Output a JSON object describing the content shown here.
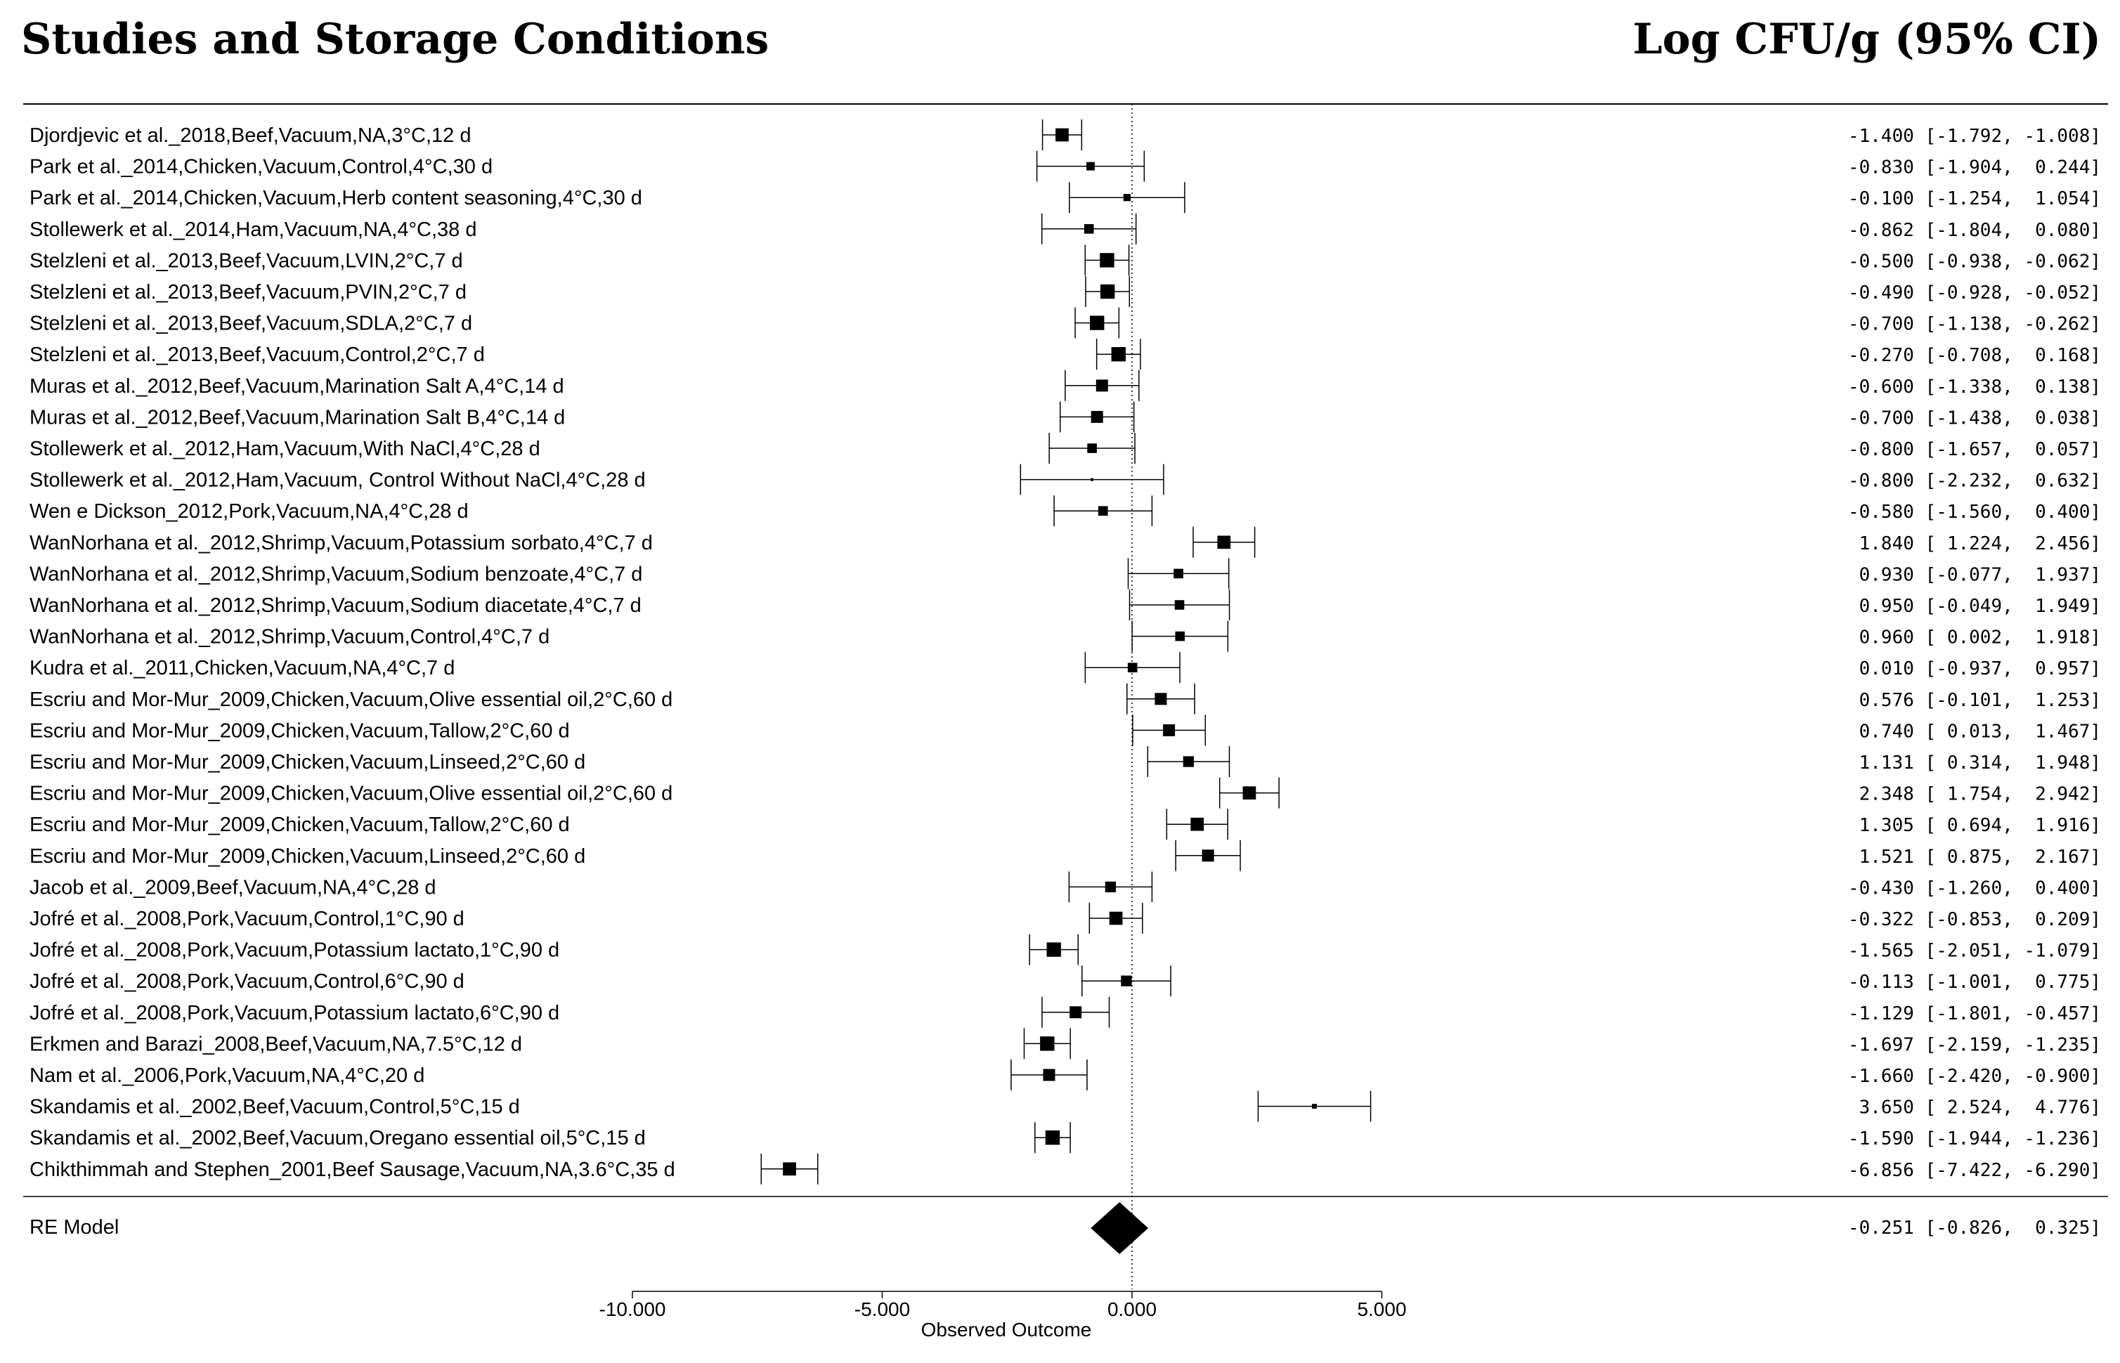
{
  "chart_data": {
    "type": "forest",
    "title_left": "Studies and Storage Conditions",
    "title_right": "Log CFU/g (95% CI)",
    "xlabel": "Observed Outcome",
    "xlim": [
      -10,
      5
    ],
    "x_ticks": [
      -10,
      -5,
      0,
      5
    ],
    "x_tick_labels": [
      "-10.000",
      "-5.000",
      "0.000",
      "5.000"
    ],
    "reference_line": 0,
    "studies": [
      {
        "label": "Djordjevic et al._2018,Beef,Vacuum,NA,3°C,12 d",
        "est": -1.4,
        "lo": -1.792,
        "hi": -1.008,
        "ci_text": "-1.400 [-1.792, -1.008]",
        "w": 2.9
      },
      {
        "label": "Park et al._2014,Chicken,Vacuum,Control,4°C,30 d",
        "est": -0.83,
        "lo": -1.904,
        "hi": 0.244,
        "ci_text": "-0.830 [-1.904,  0.244]",
        "w": 2.5
      },
      {
        "label": "Park et al._2014,Chicken,Vacuum,Herb content seasoning,4°C,30 d",
        "est": -0.1,
        "lo": -1.254,
        "hi": 1.054,
        "ci_text": "-0.100 [-1.254,  1.054]",
        "w": 2.4
      },
      {
        "label": "Stollewerk et al._2014,Ham,Vacuum,NA,4°C,38 d",
        "est": -0.862,
        "lo": -1.804,
        "hi": 0.08,
        "ci_text": "-0.862 [-1.804,  0.080]",
        "w": 2.6
      },
      {
        "label": "Stelzleni et al._2013,Beef,Vacuum,LVIN,2°C,7 d",
        "est": -0.5,
        "lo": -0.938,
        "hi": -0.062,
        "ci_text": "-0.500 [-0.938, -0.062]",
        "w": 3.0
      },
      {
        "label": "Stelzleni et al._2013,Beef,Vacuum,PVIN,2°C,7 d",
        "est": -0.49,
        "lo": -0.928,
        "hi": -0.052,
        "ci_text": "-0.490 [-0.928, -0.052]",
        "w": 3.0
      },
      {
        "label": "Stelzleni et al._2013,Beef,Vacuum,SDLA,2°C,7 d",
        "est": -0.7,
        "lo": -1.138,
        "hi": -0.262,
        "ci_text": "-0.700 [-1.138, -0.262]",
        "w": 3.0
      },
      {
        "label": "Stelzleni et al._2013,Beef,Vacuum,Control,2°C,7 d",
        "est": -0.27,
        "lo": -0.708,
        "hi": 0.168,
        "ci_text": "-0.270 [-0.708,  0.168]",
        "w": 3.0
      },
      {
        "label": "Muras et al._2012,Beef,Vacuum,Marination Salt A,4°C,14 d",
        "est": -0.6,
        "lo": -1.338,
        "hi": 0.138,
        "ci_text": "-0.600 [-1.338,  0.138]",
        "w": 2.8
      },
      {
        "label": "Muras et al._2012,Beef,Vacuum,Marination Salt B,4°C,14 d",
        "est": -0.7,
        "lo": -1.438,
        "hi": 0.038,
        "ci_text": "-0.700 [-1.438,  0.038]",
        "w": 2.8
      },
      {
        "label": "Stollewerk et al._2012,Ham,Vacuum,With NaCl,4°C,28 d",
        "est": -0.8,
        "lo": -1.657,
        "hi": 0.057,
        "ci_text": "-0.800 [-1.657,  0.057]",
        "w": 2.6
      },
      {
        "label": "Stollewerk et al._2012,Ham,Vacuum, Control Without NaCl,4°C,28 d",
        "est": -0.8,
        "lo": -2.232,
        "hi": 0.632,
        "ci_text": "-0.800 [-2.232,  0.632]",
        "w": 2.0
      },
      {
        "label": "Wen e Dickson_2012,Pork,Vacuum,NA,4°C,28 d",
        "est": -0.58,
        "lo": -1.56,
        "hi": 0.4,
        "ci_text": "-0.580 [-1.560,  0.400]",
        "w": 2.6
      },
      {
        "label": "WanNorhana et al._2012,Shrimp,Vacuum,Potassium sorbato,4°C,7 d",
        "est": 1.84,
        "lo": 1.224,
        "hi": 2.456,
        "ci_text": " 1.840 [ 1.224,  2.456]",
        "w": 2.9
      },
      {
        "label": "WanNorhana et al._2012,Shrimp,Vacuum,Sodium benzoate,4°C,7 d",
        "est": 0.93,
        "lo": -0.077,
        "hi": 1.937,
        "ci_text": " 0.930 [-0.077,  1.937]",
        "w": 2.6
      },
      {
        "label": "WanNorhana et al._2012,Shrimp,Vacuum,Sodium diacetate,4°C,7 d",
        "est": 0.95,
        "lo": -0.049,
        "hi": 1.949,
        "ci_text": " 0.950 [-0.049,  1.949]",
        "w": 2.6
      },
      {
        "label": "WanNorhana et al._2012,Shrimp,Vacuum,Control,4°C,7 d",
        "est": 0.96,
        "lo": 0.002,
        "hi": 1.918,
        "ci_text": " 0.960 [ 0.002,  1.918]",
        "w": 2.6
      },
      {
        "label": "Kudra et al._2011,Chicken,Vacuum,NA,4°C,7 d",
        "est": 0.01,
        "lo": -0.937,
        "hi": 0.957,
        "ci_text": " 0.010 [-0.937,  0.957]",
        "w": 2.6
      },
      {
        "label": "Escriu and Mor-Mur_2009,Chicken,Vacuum,Olive essential oil,2°C,60 d",
        "est": 0.576,
        "lo": -0.101,
        "hi": 1.253,
        "ci_text": " 0.576 [-0.101,  1.253]",
        "w": 2.8
      },
      {
        "label": "Escriu and Mor-Mur_2009,Chicken,Vacuum,Tallow,2°C,60 d",
        "est": 0.74,
        "lo": 0.013,
        "hi": 1.467,
        "ci_text": " 0.740 [ 0.013,  1.467]",
        "w": 2.8
      },
      {
        "label": "Escriu and Mor-Mur_2009,Chicken,Vacuum,Linseed,2°C,60 d",
        "est": 1.131,
        "lo": 0.314,
        "hi": 1.948,
        "ci_text": " 1.131 [ 0.314,  1.948]",
        "w": 2.7
      },
      {
        "label": "Escriu and Mor-Mur_2009,Chicken,Vacuum,Olive essential oil,2°C,60 d",
        "est": 2.348,
        "lo": 1.754,
        "hi": 2.942,
        "ci_text": " 2.348 [ 1.754,  2.942]",
        "w": 2.9
      },
      {
        "label": "Escriu and Mor-Mur_2009,Chicken,Vacuum,Tallow,2°C,60 d",
        "est": 1.305,
        "lo": 0.694,
        "hi": 1.916,
        "ci_text": " 1.305 [ 0.694,  1.916]",
        "w": 2.9
      },
      {
        "label": "Escriu and Mor-Mur_2009,Chicken,Vacuum,Linseed,2°C,60 d",
        "est": 1.521,
        "lo": 0.875,
        "hi": 2.167,
        "ci_text": " 1.521 [ 0.875,  2.167]",
        "w": 2.8
      },
      {
        "label": "Jacob et al._2009,Beef,Vacuum,NA,4°C,28 d",
        "est": -0.43,
        "lo": -1.26,
        "hi": 0.4,
        "ci_text": "-0.430 [-1.260,  0.400]",
        "w": 2.7
      },
      {
        "label": "Jofré et al._2008,Pork,Vacuum,Control,1°C,90 d",
        "est": -0.322,
        "lo": -0.853,
        "hi": 0.209,
        "ci_text": "-0.322 [-0.853,  0.209]",
        "w": 2.9
      },
      {
        "label": "Jofré et al._2008,Pork,Vacuum,Potassium lactato,1°C,90 d",
        "est": -1.565,
        "lo": -2.051,
        "hi": -1.079,
        "ci_text": "-1.565 [-2.051, -1.079]",
        "w": 3.0
      },
      {
        "label": "Jofré et al._2008,Pork,Vacuum,Control,6°C,90 d",
        "est": -0.113,
        "lo": -1.001,
        "hi": 0.775,
        "ci_text": "-0.113 [-1.001,  0.775]",
        "w": 2.7
      },
      {
        "label": "Jofré et al._2008,Pork,Vacuum,Potassium lactato,6°C,90 d",
        "est": -1.129,
        "lo": -1.801,
        "hi": -0.457,
        "ci_text": "-1.129 [-1.801, -0.457]",
        "w": 2.8
      },
      {
        "label": "Erkmen and Barazi_2008,Beef,Vacuum,NA,7.5°C,12 d",
        "est": -1.697,
        "lo": -2.159,
        "hi": -1.235,
        "ci_text": "-1.697 [-2.159, -1.235]",
        "w": 3.0
      },
      {
        "label": "Nam et al._2006,Pork,Vacuum,NA,4°C,20 d",
        "est": -1.66,
        "lo": -2.42,
        "hi": -0.9,
        "ci_text": "-1.660 [-2.420, -0.900]",
        "w": 2.8
      },
      {
        "label": "Skandamis et al._2002,Beef,Vacuum,Control,5°C,15 d",
        "est": 3.65,
        "lo": 2.524,
        "hi": 4.776,
        "ci_text": " 3.650 [ 2.524,  4.776]",
        "w": 2.2
      },
      {
        "label": "Skandamis et al._2002,Beef,Vacuum,Oregano essential oil,5°C,15 d",
        "est": -1.59,
        "lo": -1.944,
        "hi": -1.236,
        "ci_text": "-1.590 [-1.944, -1.236]",
        "w": 3.0
      },
      {
        "label": "Chikthimmah and Stephen_2001,Beef Sausage,Vacuum,NA,3.6°C,35 d",
        "est": -6.856,
        "lo": -7.422,
        "hi": -6.29,
        "ci_text": "-6.856 [-7.422, -6.290]",
        "w": 2.9
      }
    ],
    "summary": {
      "label": "RE Model",
      "est": -0.251,
      "lo": -0.826,
      "hi": 0.325,
      "ci_text": "-0.251 [-0.826,  0.325]"
    }
  }
}
